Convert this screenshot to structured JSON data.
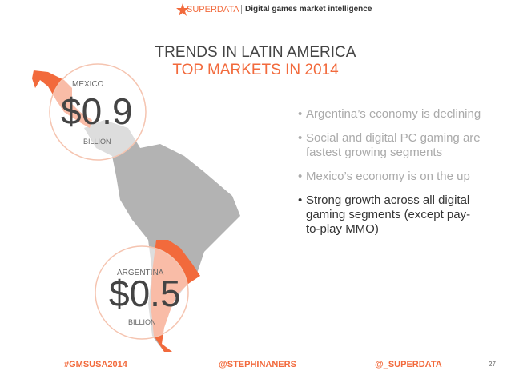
{
  "header": {
    "brand": "SUPERDATA",
    "tagline": "Digital games market intelligence"
  },
  "title": "TRENDS IN LATIN AMERICA",
  "subtitle": "TOP MARKETS IN 2014",
  "markets": [
    {
      "country": "MEXICO",
      "value": "$0.9",
      "unit": "BILLION"
    },
    {
      "country": "ARGENTINA",
      "value": "$0.5",
      "unit": "BILLION"
    }
  ],
  "bullets": [
    "Argentina’s economy is declining",
    "Social and digital PC gaming are fastest growing segments",
    "Mexico’s economy is on the up",
    "Strong growth across all digital gaming segments (except pay-to-play MMO)"
  ],
  "footer": {
    "left": "#GMSUSA2014",
    "center": "@STEPHINANERS",
    "right": "@_SUPERDATA",
    "page": "27"
  }
}
